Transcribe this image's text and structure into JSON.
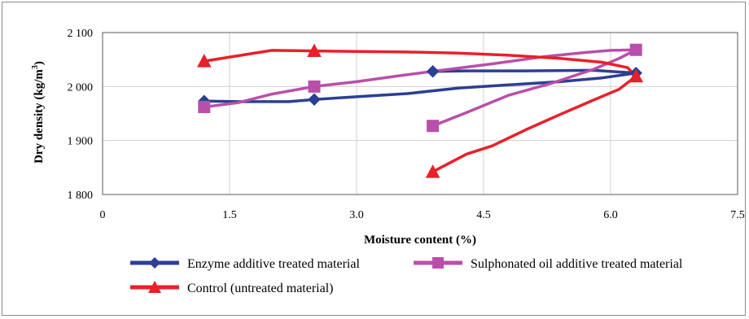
{
  "chart_data": {
    "type": "line",
    "xlabel": "Moisture content (%)",
    "ylabel_main": "Dry density (kg/m",
    "ylabel_sup": "3",
    "ylabel_end": ")",
    "xlim": [
      0,
      7.5
    ],
    "ylim": [
      1800,
      2100
    ],
    "xticks": [
      0,
      1.5,
      3.0,
      4.5,
      6.0,
      7.5
    ],
    "xtick_labels": [
      "0",
      "1.5",
      "3.0",
      "4.5",
      "6.0",
      "7.5"
    ],
    "yticks": [
      1800,
      1900,
      2000,
      2100
    ],
    "ytick_labels": [
      "1 800",
      "1 900",
      "2 000",
      "2 100"
    ],
    "grid": true,
    "legend_position": "bottom",
    "series": [
      {
        "name": "Enzyme additive treated material",
        "color": "#2b3f94",
        "marker": "diamond",
        "points": [
          [
            1.2,
            1973
          ],
          [
            2.5,
            1976
          ],
          [
            3.9,
            2028
          ],
          [
            6.3,
            2025
          ]
        ],
        "curve": [
          [
            1.2,
            1973
          ],
          [
            1.6,
            1972
          ],
          [
            2.2,
            1972
          ],
          [
            2.5,
            1976
          ],
          [
            3.0,
            1981
          ],
          [
            3.6,
            1987
          ],
          [
            4.2,
            1997
          ],
          [
            4.8,
            2003
          ],
          [
            5.4,
            2009
          ],
          [
            5.9,
            2016
          ],
          [
            6.3,
            2025
          ],
          [
            5.8,
            2030
          ],
          [
            5.0,
            2029
          ],
          [
            4.3,
            2029
          ],
          [
            3.9,
            2028
          ]
        ]
      },
      {
        "name": "Sulphonated oil additive treated material",
        "color": "#b94fab",
        "marker": "square",
        "points": [
          [
            1.2,
            1962
          ],
          [
            2.5,
            2000
          ],
          [
            3.9,
            1927
          ],
          [
            6.3,
            2068
          ]
        ],
        "curve": [
          [
            1.2,
            1962
          ],
          [
            1.6,
            1970
          ],
          [
            2.0,
            1986
          ],
          [
            2.5,
            2000
          ],
          [
            3.0,
            2009
          ],
          [
            3.5,
            2020
          ],
          [
            4.0,
            2030
          ],
          [
            4.6,
            2042
          ],
          [
            5.2,
            2055
          ],
          [
            5.7,
            2063
          ],
          [
            6.0,
            2067
          ],
          [
            6.3,
            2068
          ],
          [
            6.1,
            2052
          ],
          [
            5.8,
            2032
          ],
          [
            5.3,
            2006
          ],
          [
            4.8,
            1984
          ],
          [
            4.3,
            1952
          ],
          [
            3.9,
            1927
          ]
        ]
      },
      {
        "name": "Control (untreated material)",
        "color": "#e8202a",
        "marker": "triangle",
        "points": [
          [
            1.2,
            2047
          ],
          [
            2.5,
            2066
          ],
          [
            3.9,
            1842
          ],
          [
            6.3,
            2019
          ]
        ],
        "curve": [
          [
            1.2,
            2047
          ],
          [
            1.6,
            2057
          ],
          [
            2.0,
            2067
          ],
          [
            2.5,
            2066
          ],
          [
            3.0,
            2065
          ],
          [
            3.6,
            2064
          ],
          [
            4.2,
            2062
          ],
          [
            4.8,
            2058
          ],
          [
            5.4,
            2052
          ],
          [
            5.9,
            2045
          ],
          [
            6.2,
            2035
          ],
          [
            6.3,
            2019
          ],
          [
            6.1,
            1995
          ],
          [
            5.8,
            1975
          ],
          [
            5.4,
            1948
          ],
          [
            5.0,
            1920
          ],
          [
            4.6,
            1890
          ],
          [
            4.3,
            1875
          ],
          [
            3.9,
            1842
          ]
        ]
      }
    ]
  }
}
